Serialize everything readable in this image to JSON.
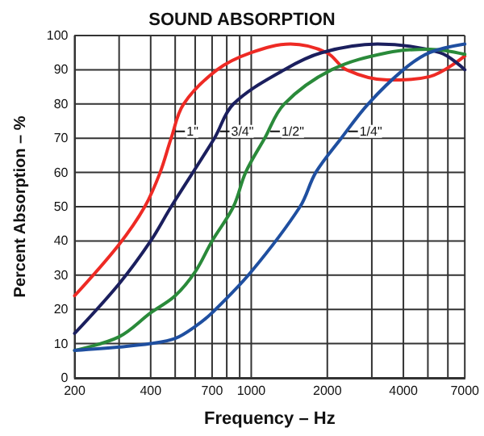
{
  "chart_data": {
    "type": "line",
    "title": "SOUND ABSORPTION",
    "xlabel": "Frequency – Hz",
    "ylabel": "Percent Absorption – %",
    "log": "x",
    "grid": true,
    "marker": "none",
    "line_style": "solid",
    "legend": false,
    "xlim": [
      200,
      7000
    ],
    "xticks": [
      200,
      {
        "value": 300,
        "label": null
      },
      400,
      {
        "value": 500,
        "label": null
      },
      {
        "value": 600,
        "label": null
      },
      700,
      {
        "value": 800,
        "label": null
      },
      {
        "value": 900,
        "label": null
      },
      1000,
      2000,
      {
        "value": 3000,
        "label": null
      },
      4000,
      {
        "value": 5000,
        "label": null
      },
      {
        "value": 6000,
        "label": null
      },
      7000
    ],
    "ylim": [
      0,
      100
    ],
    "yticks": [
      0,
      10,
      20,
      30,
      40,
      50,
      60,
      70,
      80,
      90,
      100
    ],
    "series": [
      {
        "name": "1\"",
        "color": "#ee2a24",
        "x": [
          200,
          300,
          379,
          436,
          482,
          540,
          733,
          1000,
          1430,
          1990,
          2380,
          3460,
          5080,
          7000
        ],
        "values": [
          24,
          39,
          50,
          60,
          70,
          80,
          90,
          95,
          97.5,
          95,
          90,
          87,
          88,
          94
        ]
      },
      {
        "name": "3/4\"",
        "color": "#1b1f5e",
        "x": [
          200,
          300,
          400,
          482,
          715,
          850,
          1350,
          1900,
          3160,
          5570,
          7000
        ],
        "values": [
          13,
          27.5,
          40,
          50,
          70,
          80,
          90,
          95,
          97.5,
          95,
          90
        ]
      },
      {
        "name": "1/2\"",
        "color": "#2a8a3a",
        "x": [
          200,
          300,
          400,
          500,
          600,
          700,
          850,
          950,
          1130,
          1350,
          2080,
          3460,
          5080,
          7000
        ],
        "values": [
          8,
          12,
          19,
          24,
          31,
          40,
          50,
          60,
          70,
          80,
          90,
          95,
          96,
          94.5
        ]
      },
      {
        "name": "1/4\"",
        "color": "#1f4fa0",
        "x": [
          200,
          300,
          400,
          500,
          600,
          700,
          1000,
          1560,
          1800,
          2270,
          2900,
          4000,
          5080,
          7000
        ],
        "values": [
          8,
          9,
          10,
          11.5,
          15,
          19,
          31,
          50,
          60,
          70,
          80,
          90,
          95,
          97.5
        ]
      }
    ]
  }
}
